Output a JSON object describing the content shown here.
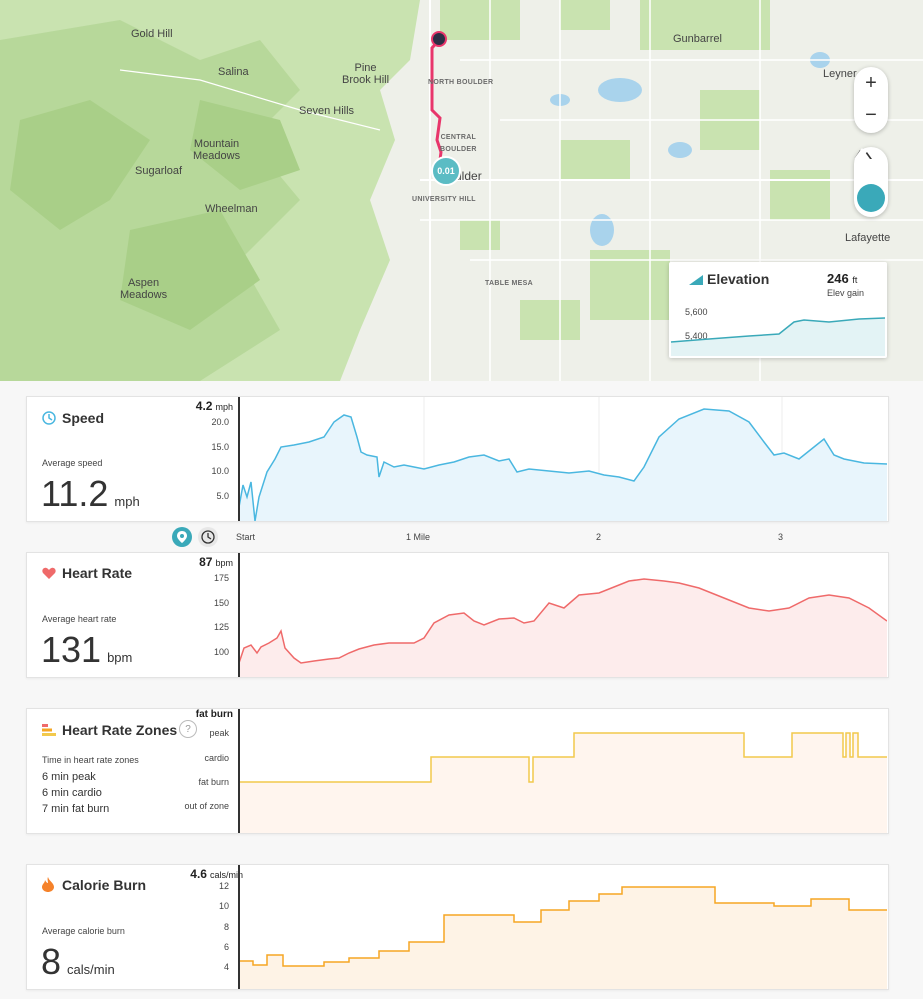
{
  "map": {
    "places": {
      "gold_hill": "Gold Hill",
      "salina": "Salina",
      "pine_brook_hill": "Pine\nBrook Hill",
      "seven_hills": "Seven Hills",
      "mountain_meadows": "Mountain\nMeadows",
      "sugarloaf": "Sugarloaf",
      "wheelman": "Wheelman",
      "aspen_meadows": "Aspen\nMeadows",
      "gunbarrel": "Gunbarrel",
      "leyner": "Leyner",
      "lafayette": "Lafayette",
      "boulder": "ulder",
      "north_boulder": "NORTH BOULDER",
      "central_boulder": "CENTRAL\nBOULDER",
      "university_hill": "UNIVERSITY HILL",
      "table_mesa": "TABLE MESA"
    },
    "route_marker_label": "0.01",
    "zoom_in": "+",
    "zoom_out": "−"
  },
  "elevation": {
    "title": "Elevation",
    "gain_value": "246",
    "gain_unit": "ft",
    "gain_label": "Elev gain",
    "ticks": [
      "5,600",
      "5,400"
    ]
  },
  "speed": {
    "title": "Speed",
    "current_value": "4.2",
    "current_unit": "mph",
    "avg_label": "Average speed",
    "avg_value": "11.2",
    "avg_unit": "mph",
    "yticks": [
      "20.0",
      "15.0",
      "10.0",
      "5.0"
    ],
    "color": "#4ab7e0"
  },
  "xaxis": {
    "labels": [
      "Start",
      "1 Mile",
      "2",
      "3"
    ]
  },
  "heart_rate": {
    "title": "Heart Rate",
    "current_value": "87",
    "current_unit": "bpm",
    "avg_label": "Average heart rate",
    "avg_value": "131",
    "avg_unit": "bpm",
    "yticks": [
      "175",
      "150",
      "125",
      "100"
    ],
    "color": "#ef6a6a"
  },
  "zones": {
    "title": "Heart Rate Zones",
    "current_value": "fat burn",
    "help": "?",
    "avg_label": "Time in heart rate zones",
    "lines": [
      "6 min peak",
      "6 min cardio",
      "7 min fat burn"
    ],
    "yticks": [
      "peak",
      "cardio",
      "fat burn",
      "out of zone"
    ],
    "color": "#f2c94c"
  },
  "calorie": {
    "title": "Calorie Burn",
    "current_value": "4.6",
    "current_unit": "cals/min",
    "avg_label": "Average calorie burn",
    "avg_value": "8",
    "avg_unit": "cals/min",
    "yticks": [
      "12",
      "10",
      "8",
      "6",
      "4"
    ],
    "color": "#f5a623"
  }
}
